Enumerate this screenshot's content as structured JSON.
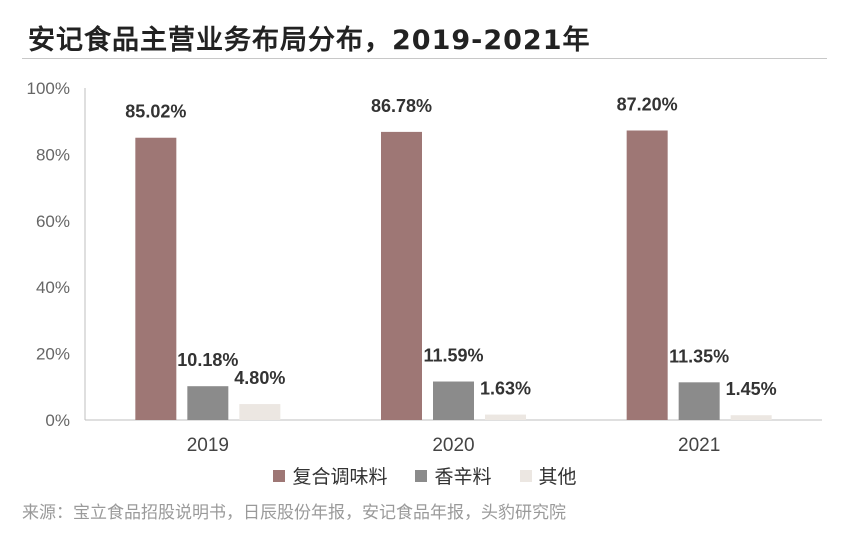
{
  "title": "安记食品主营业务布局分布，2019-2021年",
  "source": "来源：宝立食品招股说明书，日辰股份年报，安记食品年报，头豹研究院",
  "chart_data": {
    "type": "bar",
    "categories": [
      "2019",
      "2020",
      "2021"
    ],
    "series": [
      {
        "name": "复合调味料",
        "values": [
          85.02,
          86.78,
          87.2
        ],
        "labels": [
          "85.02%",
          "86.78%",
          "87.20%"
        ],
        "color": "#9e7775"
      },
      {
        "name": "香辛料",
        "values": [
          10.18,
          11.59,
          11.35
        ],
        "labels": [
          "10.18%",
          "11.59%",
          "11.35%"
        ],
        "color": "#8b8b8b"
      },
      {
        "name": "其他",
        "values": [
          4.8,
          1.63,
          1.45
        ],
        "labels": [
          "4.80%",
          "1.63%",
          "1.45%"
        ],
        "color": "#ece7e2"
      }
    ],
    "ylim": [
      0,
      100
    ],
    "yticks": [
      "0%",
      "20%",
      "40%",
      "60%",
      "80%",
      "100%"
    ],
    "grid": false,
    "legend_position": "bottom"
  },
  "legend_colors": [
    "#9e7775",
    "#8b8b8b",
    "#ece7e2"
  ]
}
